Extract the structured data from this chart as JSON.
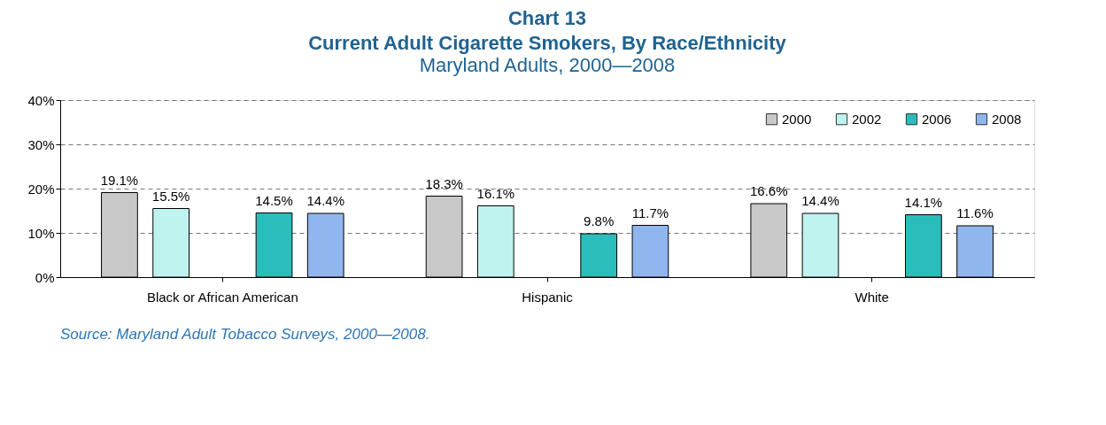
{
  "chart_data": {
    "type": "bar",
    "title": "Chart 13\nCurrent Adult Cigarette Smokers, By Race/Ethnicity",
    "subtitle": "Maryland Adults, 2000—2008",
    "categories": [
      "Black or African American",
      "Hispanic",
      "White"
    ],
    "series": [
      {
        "name": "2000",
        "color": "#c8c8c8",
        "values": [
          19.1,
          18.3,
          16.6
        ],
        "value_labels": [
          "19.1%",
          "18.3%",
          "16.6%"
        ]
      },
      {
        "name": "2002",
        "color": "#bff3f0",
        "values": [
          15.5,
          16.1,
          14.4
        ],
        "value_labels": [
          "15.5%",
          "16.1%",
          "14.4%"
        ]
      },
      {
        "values": [
          null,
          null,
          null
        ]
      },
      {
        "name": "2006",
        "color": "#2bbdbb",
        "values": [
          14.5,
          9.8,
          14.1
        ],
        "value_labels": [
          "14.5%",
          "9.8%",
          "14.1%"
        ]
      },
      {
        "name": "2008",
        "color": "#8fb6ee",
        "values": [
          14.4,
          11.7,
          11.6
        ],
        "value_labels": [
          "14.4%",
          "11.7%",
          "11.6%"
        ]
      }
    ],
    "ylim": [
      0,
      40
    ],
    "yticks": [
      {
        "value": 0,
        "label": "0%"
      },
      {
        "value": 10,
        "label": "10%"
      },
      {
        "value": 20,
        "label": "20%"
      },
      {
        "value": 30,
        "label": "30%"
      },
      {
        "value": 40,
        "label": "40%"
      }
    ],
    "grid": "y",
    "legend": "top right",
    "annotations": [
      "Source: Maryland Adult Tobacco Surveys, 2000—2008."
    ]
  }
}
